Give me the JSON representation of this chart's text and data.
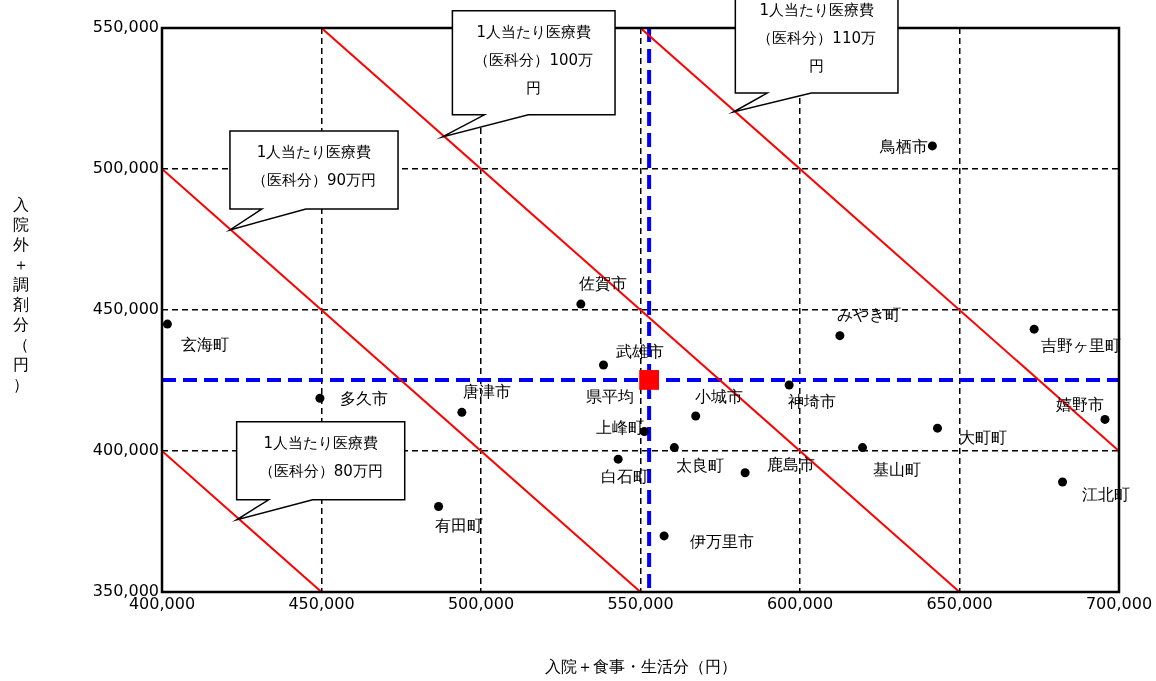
{
  "chart_data": {
    "type": "scatter",
    "xlabel": "入院＋食事・生活分（円）",
    "ylabel": "入院外＋調剤分（円）",
    "xlim": [
      400000,
      700000
    ],
    "ylim": [
      350000,
      550000
    ],
    "xticks": [
      {
        "value": 400000,
        "label": "400,000"
      },
      {
        "value": 450000,
        "label": "450,000"
      },
      {
        "value": 500000,
        "label": "500,000"
      },
      {
        "value": 550000,
        "label": "550,000"
      },
      {
        "value": 600000,
        "label": "600,000"
      },
      {
        "value": 650000,
        "label": "650,000"
      },
      {
        "value": 700000,
        "label": "700,000"
      }
    ],
    "yticks": [
      {
        "value": 350000,
        "label": "350,000"
      },
      {
        "value": 400000,
        "label": "400,000"
      },
      {
        "value": 450000,
        "label": "450,000"
      },
      {
        "value": 500000,
        "label": "500,000"
      },
      {
        "value": 550000,
        "label": "550,000"
      }
    ],
    "grid": true,
    "legend": false,
    "marker": "circle",
    "series": [
      {
        "type": "line",
        "marker": "none",
        "color": "#ff0000",
        "x": [
          400000,
          450000
        ],
        "values": [
          400000,
          350000
        ]
      },
      {
        "type": "line",
        "marker": "none",
        "color": "#ff0000",
        "x": [
          400000,
          550000
        ],
        "values": [
          500000,
          350000
        ]
      },
      {
        "type": "line",
        "marker": "none",
        "color": "#ff0000",
        "x": [
          450000,
          650000
        ],
        "values": [
          550000,
          350000
        ]
      },
      {
        "type": "line",
        "marker": "none",
        "color": "#ff0000",
        "x": [
          550000,
          700000
        ],
        "values": [
          550000,
          400000
        ]
      },
      {
        "color": "#000000",
        "x": [
          401700,
          449500,
          494000,
          486700,
          531300,
          538400,
          551200,
          543000,
          560600,
          567300,
          582800,
          557400,
          596600,
          612500,
          641500,
          619600,
          643100,
          673400,
          695600,
          682300
        ],
        "values": [
          445000,
          418700,
          413700,
          380300,
          452100,
          430500,
          406900,
          397100,
          401200,
          412400,
          392300,
          369900,
          423400,
          440900,
          508200,
          401200,
          408100,
          443200,
          411200,
          389000
        ],
        "value_labels": [
          "玄海町",
          "多久市",
          "唐津市",
          "有田町",
          "佐賀市",
          "武雄市",
          "上峰町",
          "白石町",
          "太良町",
          "小城市",
          "鹿島市",
          "伊万里市",
          "神埼市",
          "みやき町",
          "鳥栖市",
          "基山町",
          "大町町",
          "吉野ヶ里町",
          "嬉野市",
          "江北町"
        ]
      },
      {
        "name": "県平均",
        "marker": "square",
        "color": "#ff0000",
        "x": [
          552700
        ],
        "values": [
          425200
        ]
      }
    ],
    "ref_lines": [
      {
        "axis": "x",
        "value": 552700,
        "color": "#0000ff",
        "line_style": "dashed"
      },
      {
        "axis": "y",
        "value": 425200,
        "color": "#0000ff",
        "line_style": "dashed"
      }
    ],
    "annotations": [
      "1人当たり医療費（医科分）80万円",
      "1人当たり医療費（医科分）90万円",
      "1人当たり医療費（医科分）100万円",
      "1人当たり医療費（医科分）110万円"
    ]
  }
}
